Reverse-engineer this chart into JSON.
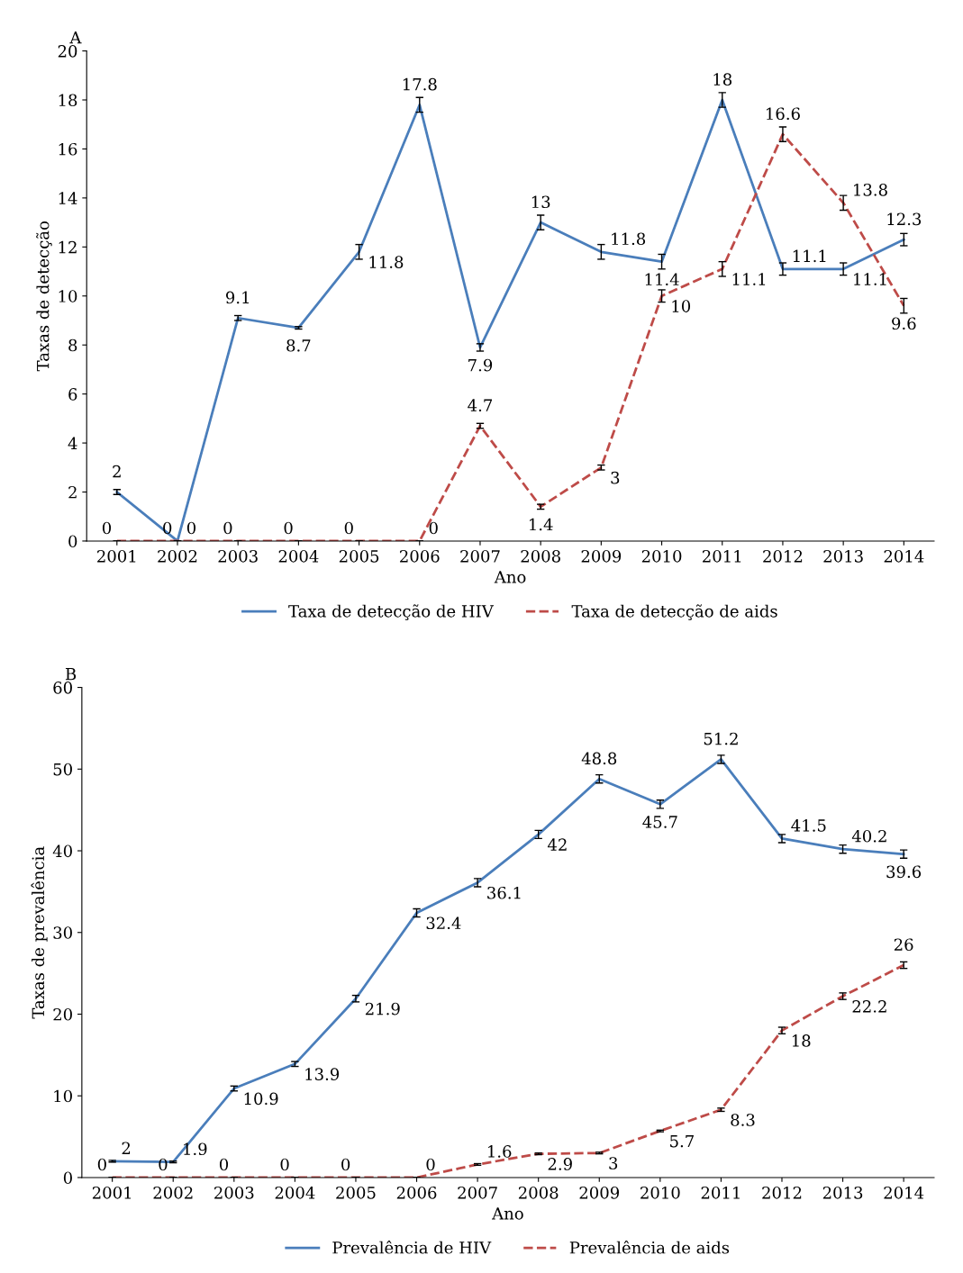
{
  "chart_data": [
    {
      "type": "line",
      "title": "A",
      "xlabel": "Ano",
      "ylabel": "Taxas de detecção",
      "categories": [
        "2001",
        "2002",
        "2003",
        "2004",
        "2005",
        "2006",
        "2007",
        "2008",
        "2009",
        "2010",
        "2011",
        "2012",
        "2013",
        "2014"
      ],
      "ylim": [
        0,
        20
      ],
      "yticks": [
        0,
        2,
        4,
        6,
        8,
        10,
        12,
        14,
        16,
        18,
        20
      ],
      "grid": false,
      "legend": "bottom",
      "data_labels": true,
      "series": [
        {
          "name": "Taxa de detecção de HIV",
          "color": "#4a7ebb",
          "line_style": "solid",
          "values": [
            2,
            0,
            9.1,
            8.7,
            11.8,
            17.8,
            7.9,
            13,
            11.8,
            11.4,
            18,
            11.1,
            11.1,
            12.3
          ],
          "errors": [
            0.1,
            0,
            0.1,
            0.05,
            0.3,
            0.3,
            0.15,
            0.3,
            0.3,
            0.3,
            0.3,
            0.25,
            0.25,
            0.25
          ]
        },
        {
          "name": "Taxa de detecção de aids",
          "color": "#be4b48",
          "line_style": "dashed",
          "values": [
            0,
            0,
            0,
            0,
            0,
            0,
            4.7,
            1.4,
            3,
            10,
            11.1,
            16.6,
            13.8,
            9.6
          ],
          "errors": [
            0,
            0,
            0,
            0,
            0,
            0,
            0.1,
            0.1,
            0.1,
            0.25,
            0.3,
            0.3,
            0.3,
            0.3
          ]
        }
      ]
    },
    {
      "type": "line",
      "title": "B",
      "xlabel": "Ano",
      "ylabel": "Taxas de prevalência",
      "categories": [
        "2001",
        "2002",
        "2003",
        "2004",
        "2005",
        "2006",
        "2007",
        "2008",
        "2009",
        "2010",
        "2011",
        "2012",
        "2013",
        "2014"
      ],
      "ylim": [
        0,
        60
      ],
      "yticks": [
        0,
        10,
        20,
        30,
        40,
        50,
        60
      ],
      "grid": false,
      "legend": "bottom",
      "data_labels": true,
      "series": [
        {
          "name": "Prevalência de HIV",
          "color": "#4a7ebb",
          "line_style": "solid",
          "values": [
            2,
            1.9,
            10.9,
            13.9,
            21.9,
            32.4,
            36.1,
            42,
            48.8,
            45.7,
            51.2,
            41.5,
            40.2,
            39.6
          ],
          "errors": [
            0.1,
            0.1,
            0.3,
            0.3,
            0.4,
            0.5,
            0.5,
            0.5,
            0.5,
            0.5,
            0.5,
            0.5,
            0.5,
            0.5
          ]
        },
        {
          "name": "Prevalência de aids",
          "color": "#be4b48",
          "line_style": "dashed",
          "values": [
            0,
            0,
            0,
            0,
            0,
            0,
            1.6,
            2.9,
            3,
            5.7,
            8.3,
            18,
            22.2,
            26
          ],
          "errors": [
            0,
            0,
            0,
            0,
            0,
            0,
            0.1,
            0.1,
            0.1,
            0.1,
            0.2,
            0.4,
            0.4,
            0.4
          ]
        }
      ]
    }
  ]
}
